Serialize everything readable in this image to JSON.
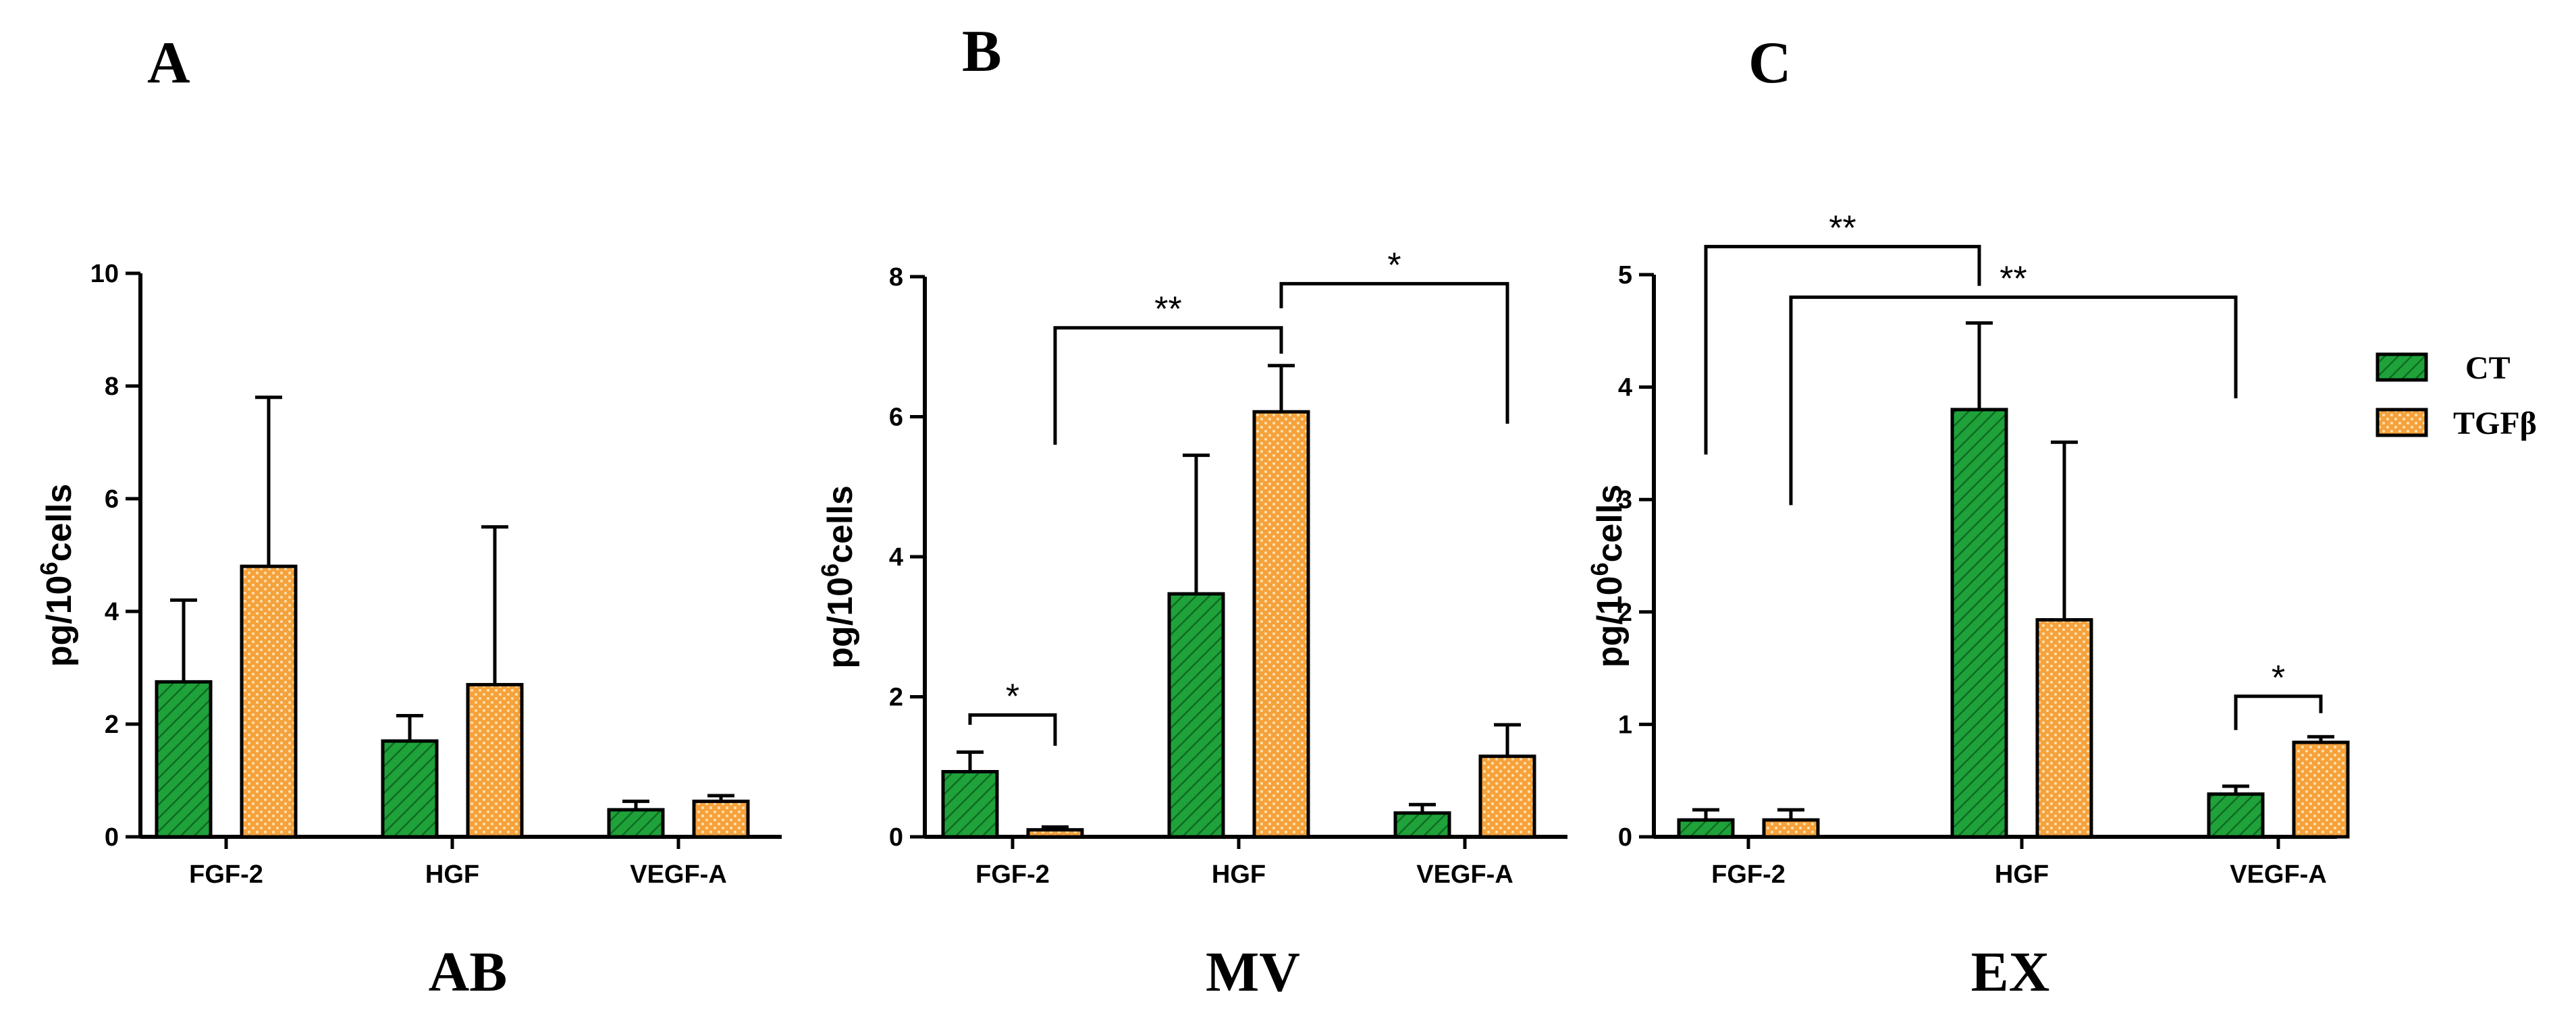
{
  "legend": [
    {
      "name": "CT",
      "color": "#1fa23a",
      "pattern": "green-stripes"
    },
    {
      "name": "TGFβ",
      "color": "#f4a03a",
      "pattern": "orange-dots"
    }
  ],
  "chart_data": [
    {
      "type": "bar",
      "panel": "A",
      "bottom_label": "AB",
      "ylabel": "pg/10",
      "ylabel_sup": "6",
      "ylabel_tail": "cells",
      "ylim": [
        0,
        10
      ],
      "yticks": [
        0,
        2,
        4,
        6,
        8,
        10
      ],
      "categories": [
        "FGF-2",
        "HGF",
        "VEGF-A"
      ],
      "series": [
        {
          "name": "CT",
          "values": [
            2.75,
            1.7,
            0.48
          ],
          "errors": [
            1.45,
            0.45,
            0.15
          ]
        },
        {
          "name": "TGFβ",
          "values": [
            4.8,
            2.7,
            0.63
          ],
          "errors": [
            3.0,
            2.8,
            0.1
          ]
        }
      ],
      "significance": []
    },
    {
      "type": "bar",
      "panel": "B",
      "bottom_label": "MV",
      "ylabel": "pg/10",
      "ylabel_sup": "6",
      "ylabel_tail": "cells",
      "ylim": [
        0,
        8
      ],
      "yticks": [
        0,
        2,
        4,
        6,
        8
      ],
      "categories": [
        "FGF-2",
        "HGF",
        "VEGF-A"
      ],
      "series": [
        {
          "name": "CT",
          "values": [
            0.93,
            3.47,
            0.34
          ],
          "errors": [
            0.28,
            1.98,
            0.12
          ]
        },
        {
          "name": "TGFβ",
          "values": [
            0.1,
            6.07,
            1.15
          ],
          "errors": [
            0.04,
            0.66,
            0.45
          ]
        }
      ],
      "significance": [
        {
          "label": "*",
          "from": [
            0,
            0
          ],
          "to": [
            0,
            1
          ],
          "y": 1.74,
          "left_drop": 1.6,
          "right_drop": 1.3
        },
        {
          "label": "**",
          "from": [
            0,
            1
          ],
          "to": [
            1,
            1
          ],
          "y": 7.27,
          "left_drop": 5.6,
          "right_drop": 6.9
        },
        {
          "label": "*",
          "from": [
            1,
            1
          ],
          "to": [
            2,
            1
          ],
          "y": 7.9,
          "left_drop": 7.55,
          "right_drop": 5.9
        }
      ]
    },
    {
      "type": "bar",
      "panel": "C",
      "bottom_label": "EX",
      "ylabel": "pg/10",
      "ylabel_sup": "6",
      "ylabel_tail": "cells",
      "ylim": [
        0,
        5
      ],
      "yticks": [
        0,
        1,
        2,
        3,
        4,
        5
      ],
      "categories": [
        "FGF-2",
        "HGF",
        "VEGF-A"
      ],
      "series": [
        {
          "name": "CT",
          "values": [
            0.15,
            3.8,
            0.38
          ],
          "errors": [
            0.09,
            0.77,
            0.07
          ]
        },
        {
          "name": "TGFβ",
          "values": [
            0.15,
            1.93,
            0.84
          ],
          "errors": [
            0.09,
            1.58,
            0.05
          ]
        }
      ],
      "significance": [
        {
          "label": "**",
          "from": [
            0,
            0
          ],
          "to": [
            1,
            0
          ],
          "y": 5.25,
          "left_drop": 3.4,
          "right_drop": 4.9
        },
        {
          "label": "**",
          "from": [
            0,
            1
          ],
          "to": [
            2,
            0
          ],
          "y": 4.8,
          "left_drop": 2.95,
          "right_drop": 3.9
        },
        {
          "label": "*",
          "from": [
            2,
            0
          ],
          "to": [
            2,
            1
          ],
          "y": 1.25,
          "left_drop": 0.95,
          "right_drop": 1.1
        }
      ]
    }
  ]
}
